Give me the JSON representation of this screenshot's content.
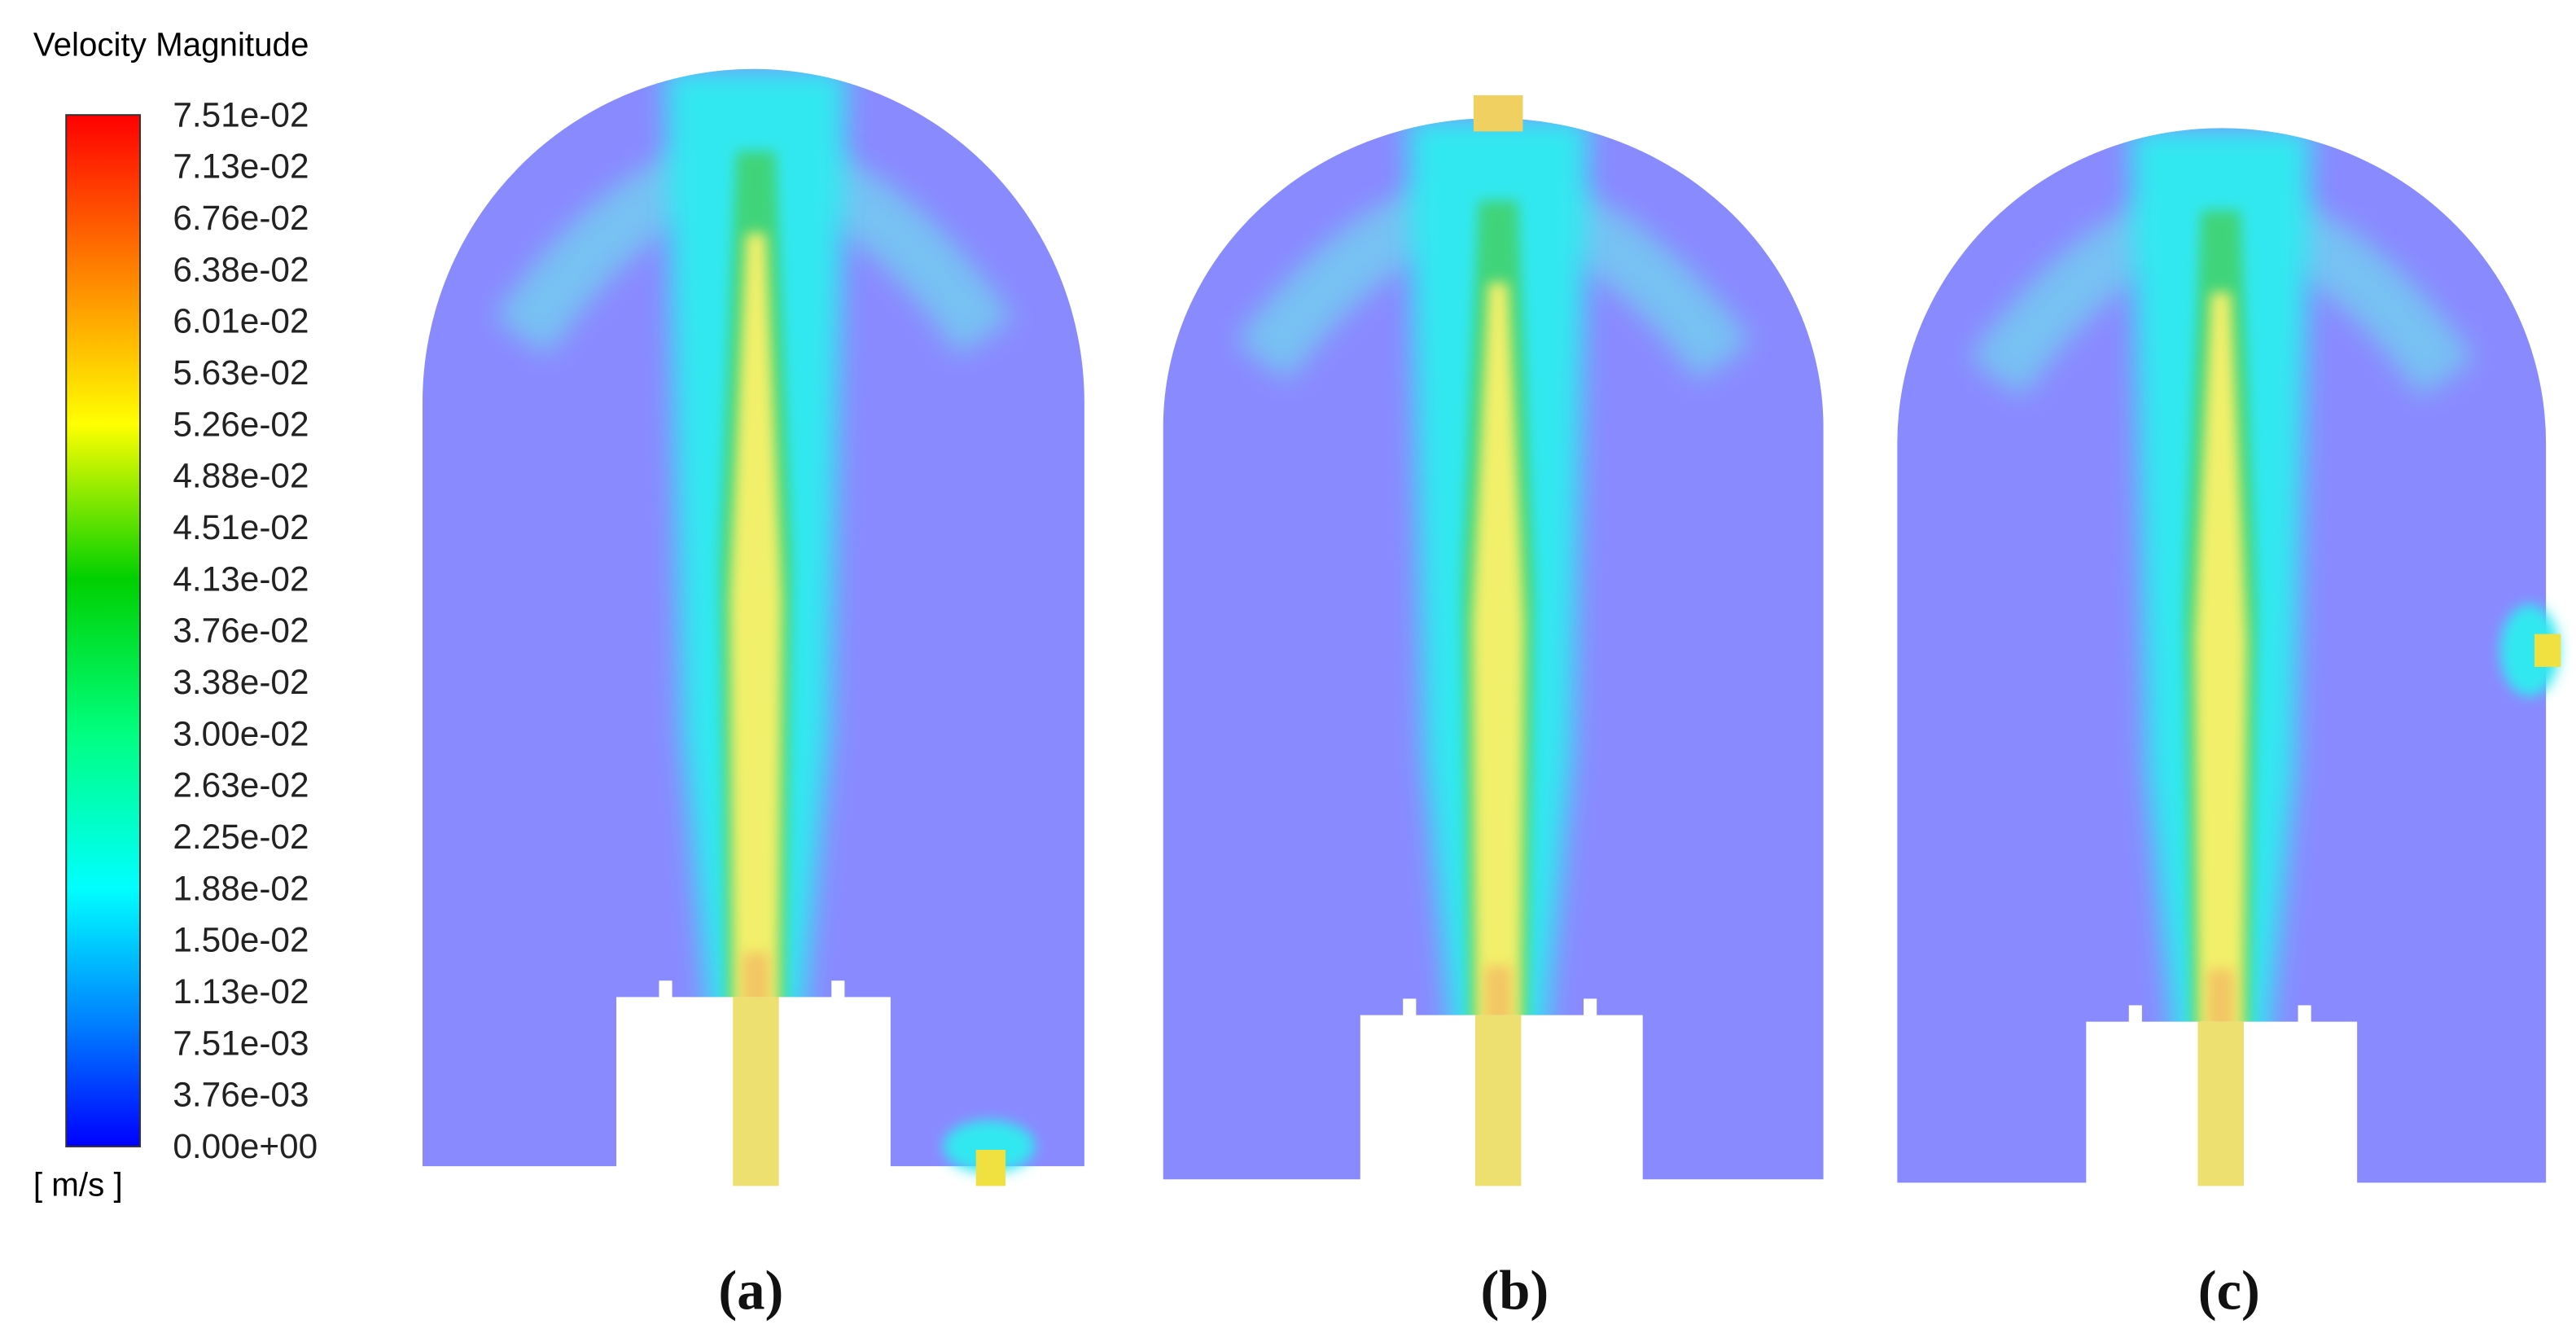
{
  "legend": {
    "title": "Velocity Magnitude",
    "labels": [
      "7.51e-02",
      "7.13e-02",
      "6.76e-02",
      "6.38e-02",
      "6.01e-02",
      "5.63e-02",
      "5.26e-02",
      "4.88e-02",
      "4.51e-02",
      "4.13e-02",
      "3.76e-02",
      "3.38e-02",
      "3.00e-02",
      "2.63e-02",
      "2.25e-02",
      "1.88e-02",
      "1.50e-02",
      "1.13e-02",
      "7.51e-03",
      "3.76e-03",
      "0.00e+00"
    ],
    "unit": "[ m/s ]"
  },
  "panels": [
    {
      "label": "(a)"
    },
    {
      "label": "(b)"
    },
    {
      "label": "(c)"
    }
  ]
}
